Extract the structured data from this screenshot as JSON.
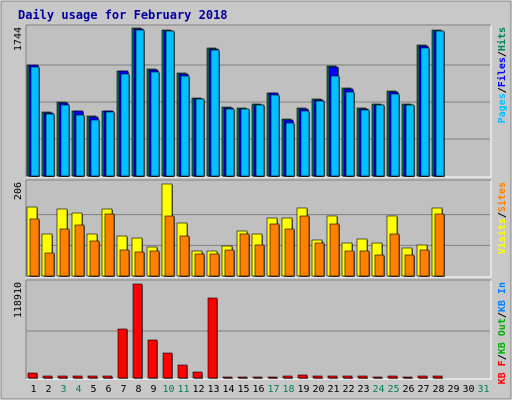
{
  "chart_data": {
    "title": "Daily usage for February 2018",
    "days": [
      "1",
      "2",
      "3",
      "4",
      "5",
      "6",
      "7",
      "8",
      "9",
      "10",
      "11",
      "12",
      "13",
      "14",
      "15",
      "16",
      "17",
      "18",
      "19",
      "20",
      "21",
      "22",
      "23",
      "24",
      "25",
      "26",
      "27",
      "28",
      "29",
      "30",
      "31"
    ],
    "weekend_days": [
      "3",
      "4",
      "10",
      "11",
      "17",
      "18",
      "24",
      "25",
      "31"
    ],
    "colors": {
      "title": "#0000a0",
      "frame_bg": "#c8c8c8",
      "panel_bg": "#c0c0c0",
      "grid": "#808080",
      "hits": "#00805c",
      "files": "#0000ff",
      "pages": "#00c0ff",
      "visits": "#ffff00",
      "sites": "#ff8000",
      "kb_in": "#0080ff",
      "kb_out": "#00b000",
      "kb_f": "#ff0000",
      "weekday_label": "#000000",
      "weekend_label": "#00805c"
    },
    "panels": [
      {
        "type": "bar",
        "ytick": "1744",
        "legend": [
          {
            "text": "Pages",
            "color": "#00c0ff"
          },
          {
            "text": "/",
            "color": "#000000"
          },
          {
            "text": "Files",
            "color": "#0000ff"
          },
          {
            "text": "/",
            "color": "#000000"
          },
          {
            "text": "Hits",
            "color": "#00805c"
          }
        ],
        "gridlines": [
          0.25,
          0.5,
          0.75
        ],
        "series": [
          {
            "name": "Hits",
            "values": [
              1300,
              750,
              870,
              770,
              700,
              770,
              1240,
              1740,
              1260,
              1720,
              1210,
              920,
              1500,
              810,
              800,
              850,
              980,
              670,
              800,
              900,
              1290,
              1030,
              800,
              850,
              1000,
              850,
              1540,
              1720
            ]
          },
          {
            "name": "Files",
            "values": [
              1300,
              740,
              860,
              760,
              690,
              760,
              1230,
              1730,
              1250,
              1710,
              1200,
              910,
              1490,
              800,
              790,
              840,
              970,
              660,
              790,
              890,
              1280,
              1020,
              790,
              840,
              990,
              840,
              1530,
              1710
            ]
          },
          {
            "name": "Pages",
            "values": [
              1280,
              730,
              830,
              720,
              660,
              750,
              1200,
              1720,
              1220,
              1700,
              1170,
              900,
              1480,
              790,
              790,
              830,
              950,
              620,
              770,
              880,
              1180,
              990,
              780,
              830,
              960,
              830,
              1510,
              1700
            ]
          }
        ]
      },
      {
        "type": "bar",
        "ytick": "206",
        "legend": [
          {
            "text": "Visits",
            "color": "#ffff00"
          },
          {
            "text": "/",
            "color": "#000000"
          },
          {
            "text": "Sites",
            "color": "#ff8000"
          }
        ],
        "gridlines": [
          0.333,
          0.667
        ],
        "series": [
          {
            "name": "Visits",
            "values": [
              155,
              93,
              150,
              140,
              95,
              150,
              89,
              86,
              66,
              206,
              119,
              55,
              55,
              67,
              100,
              95,
              130,
              130,
              153,
              80,
              135,
              75,
              82,
              75,
              135,
              62,
              69,
              153
            ]
          },
          {
            "name": "Sites",
            "values": [
              128,
              52,
              106,
              114,
              78,
              138,
              58,
              53,
              55,
              135,
              89,
              50,
              50,
              58,
              95,
              70,
              116,
              105,
              135,
              75,
              116,
              55,
              55,
              47,
              95,
              47,
              58,
              138
            ]
          }
        ]
      },
      {
        "type": "bar",
        "ytick": "118910",
        "legend": [
          {
            "text": "KB F",
            "color": "#ff0000"
          },
          {
            "text": "/",
            "color": "#000000"
          },
          {
            "text": "KB Out",
            "color": "#00b000"
          },
          {
            "text": "/",
            "color": "#000000"
          },
          {
            "text": "KB In",
            "color": "#0080ff"
          }
        ],
        "gridlines": [
          0.5
        ],
        "series": [
          {
            "name": "KB F",
            "values": [
              5800,
              2400,
              2400,
              2400,
              2500,
              2500,
              62000,
              118910,
              48000,
              32000,
              17000,
              7000,
              101000,
              1200,
              1200,
              1200,
              1200,
              2600,
              4400,
              2400,
              2400,
              2400,
              2400,
              1200,
              2400,
              1200,
              2400,
              2400
            ]
          }
        ]
      }
    ]
  }
}
